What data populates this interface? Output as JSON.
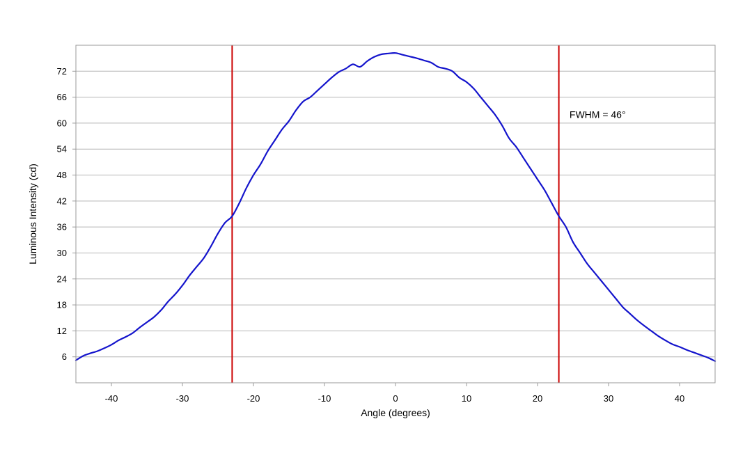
{
  "chart_data": {
    "type": "line",
    "title": "",
    "xlabel": "Angle (degrees)",
    "ylabel": "Luminous Intensity (cd)",
    "xlim": [
      -45,
      45
    ],
    "ylim": [
      0,
      78
    ],
    "xticks": [
      -40,
      -30,
      -20,
      -10,
      0,
      10,
      20,
      30,
      40
    ],
    "xtick_labels": [
      "-40",
      "-30",
      "-20",
      "-10",
      "0",
      "10",
      "20",
      "30",
      "40"
    ],
    "yticks": [
      6,
      12,
      18,
      24,
      30,
      36,
      42,
      48,
      54,
      60,
      66,
      72
    ],
    "ytick_labels": [
      "6",
      "12",
      "18",
      "24",
      "30",
      "36",
      "42",
      "48",
      "54",
      "60",
      "66",
      "72"
    ],
    "grid": "horizontal",
    "legend": "none",
    "series": [
      {
        "color": "#1414cc",
        "x": [
          -45,
          -44,
          -43,
          -42,
          -41,
          -40,
          -39,
          -38,
          -37,
          -36,
          -35,
          -34,
          -33,
          -32,
          -31,
          -30,
          -29,
          -28,
          -27,
          -26,
          -25,
          -24,
          -23,
          -22,
          -21,
          -20,
          -19,
          -18,
          -17,
          -16,
          -15,
          -14,
          -13,
          -12,
          -11,
          -10,
          -9,
          -8,
          -7,
          -6,
          -5,
          -4,
          -3,
          -2,
          -1,
          0,
          1,
          2,
          3,
          4,
          5,
          6,
          7,
          8,
          9,
          10,
          11,
          12,
          13,
          14,
          15,
          16,
          17,
          18,
          19,
          20,
          21,
          22,
          23,
          24,
          25,
          26,
          27,
          28,
          29,
          30,
          31,
          32,
          33,
          34,
          35,
          36,
          37,
          38,
          39,
          40,
          41,
          42,
          43,
          44,
          45
        ],
        "y": [
          5.2,
          6.2,
          6.8,
          7.3,
          8.0,
          8.8,
          9.8,
          10.6,
          11.5,
          12.8,
          14.0,
          15.2,
          16.8,
          18.8,
          20.5,
          22.5,
          24.8,
          26.8,
          28.8,
          31.5,
          34.5,
          37.0,
          38.5,
          41.5,
          45.0,
          48.0,
          50.5,
          53.5,
          56.0,
          58.5,
          60.5,
          63.0,
          65.0,
          66.0,
          67.5,
          69.0,
          70.5,
          71.8,
          72.6,
          73.6,
          73.0,
          74.3,
          75.3,
          75.9,
          76.1,
          76.2,
          75.8,
          75.4,
          75.0,
          74.5,
          74.0,
          73.0,
          72.6,
          72.0,
          70.5,
          69.5,
          68.0,
          66.0,
          64.0,
          62.0,
          59.5,
          56.5,
          54.5,
          52.0,
          49.5,
          47.0,
          44.5,
          41.5,
          38.5,
          36.0,
          32.5,
          30.0,
          27.5,
          25.5,
          23.5,
          21.5,
          19.5,
          17.5,
          16.0,
          14.5,
          13.2,
          12.0,
          10.8,
          9.8,
          8.9,
          8.3,
          7.6,
          7.0,
          6.4,
          5.8,
          5.0
        ]
      }
    ],
    "vertical_lines": [
      {
        "x": -23,
        "color": "#cc0000"
      },
      {
        "x": 23,
        "color": "#cc0000"
      }
    ],
    "annotations": [
      {
        "text": "FWHM = 46°",
        "x": 24.5,
        "y": 62
      }
    ]
  }
}
